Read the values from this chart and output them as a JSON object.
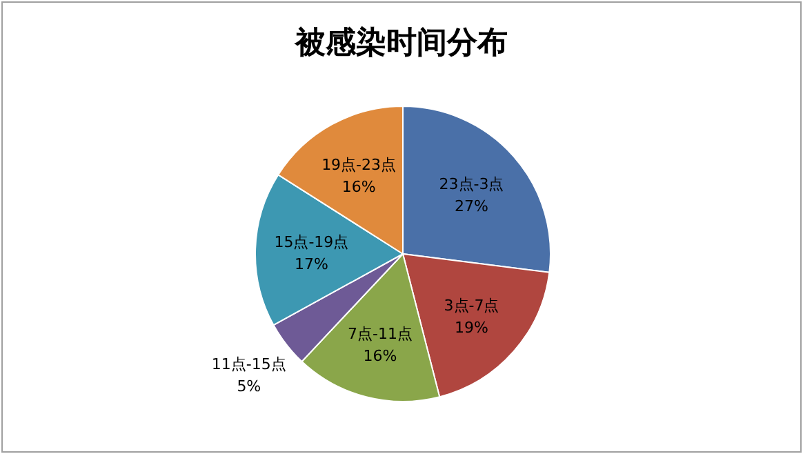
{
  "chart_data": {
    "type": "pie",
    "title": "被感染时间分布",
    "categories": [
      "23点-3点",
      "3点-7点",
      "7点-11点",
      "11点-15点",
      "15点-19点",
      "19点-23点"
    ],
    "values": [
      27,
      19,
      16,
      5,
      17,
      16
    ],
    "value_labels": [
      "27%",
      "19%",
      "16%",
      "5%",
      "17%",
      "16%"
    ],
    "colors": [
      "#4a70a8",
      "#b0463f",
      "#8aa64a",
      "#6e5a96",
      "#3d98b2",
      "#e08a3c"
    ],
    "legend": false
  }
}
